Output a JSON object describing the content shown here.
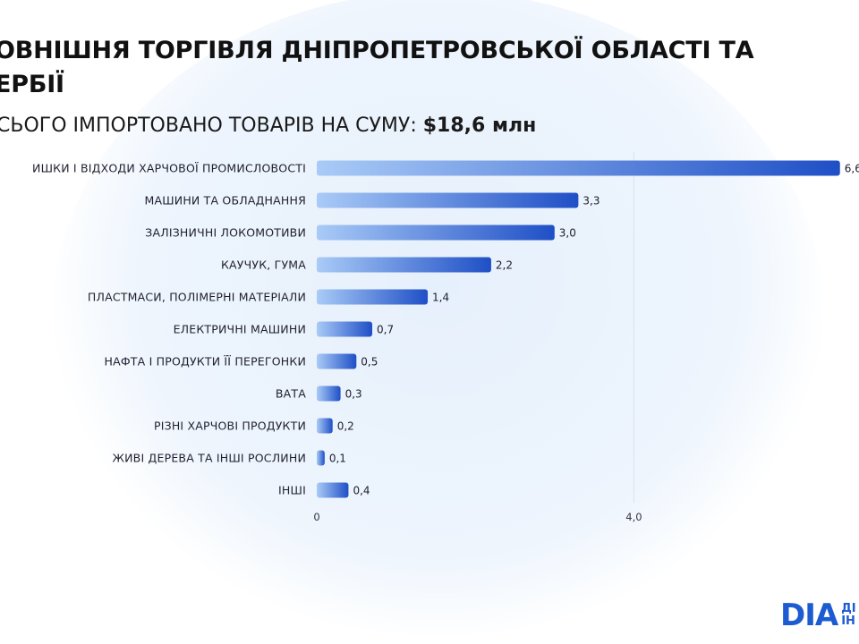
{
  "header": {
    "title_line1": "ОВНІШНЯ ТОРГІВЛЯ ДНІПРОПЕТРОВСЬКОЇ ОБЛАСТІ ТА",
    "title_line2": "ЕРБІЇ",
    "subtitle_prefix": "СЬОГО ІМПОРТОВАНО ТОВАРІВ НА СУМУ:",
    "subtitle_amount": "$18,6 млн"
  },
  "logo": {
    "mark": "DIA",
    "text_line1": "ДІ",
    "text_line2": "ІН"
  },
  "colors": {
    "bar_start": "#a9cbf7",
    "bar_end": "#1f4fc6",
    "grid": "#d9e3f1"
  },
  "chart_data": {
    "type": "bar",
    "orientation": "horizontal",
    "categories": [
      "ИШКИ І ВІДХОДИ ХАРЧОВОЇ ПРОМИСЛОВОСТІ",
      "МАШИНИ ТА ОБЛАДНАННЯ",
      "ЗАЛІЗНИЧНІ ЛОКОМОТИВИ",
      "КАУЧУК, ГУМА",
      "ПЛАСТМАСИ, ПОЛІМЕРНІ МАТЕРІАЛИ",
      "ЕЛЕКТРИЧНІ МАШИНИ",
      "НАФТА І ПРОДУКТИ ЇЇ ПЕРЕГОНКИ",
      "ВАТА",
      "РІЗНІ ХАРЧОВІ ПРОДУКТИ",
      "ЖИВІ ДЕРЕВА ТА ІНШІ РОСЛИНИ",
      "ІНШІ"
    ],
    "values": [
      6.6,
      3.3,
      3.0,
      2.2,
      1.4,
      0.7,
      0.5,
      0.3,
      0.2,
      0.1,
      0.4
    ],
    "value_labels": [
      "6,6",
      "3,3",
      "3,0",
      "2,2",
      "1,4",
      "0,7",
      "0,5",
      "0,3",
      "0,2",
      "0,1",
      "0,4"
    ],
    "xlim": [
      0,
      6.6
    ],
    "xticks": [
      0,
      4
    ],
    "xtick_labels": [
      "0",
      "4,0"
    ],
    "grid": "vertical at 4,0",
    "title": "",
    "xlabel": "",
    "ylabel": ""
  }
}
